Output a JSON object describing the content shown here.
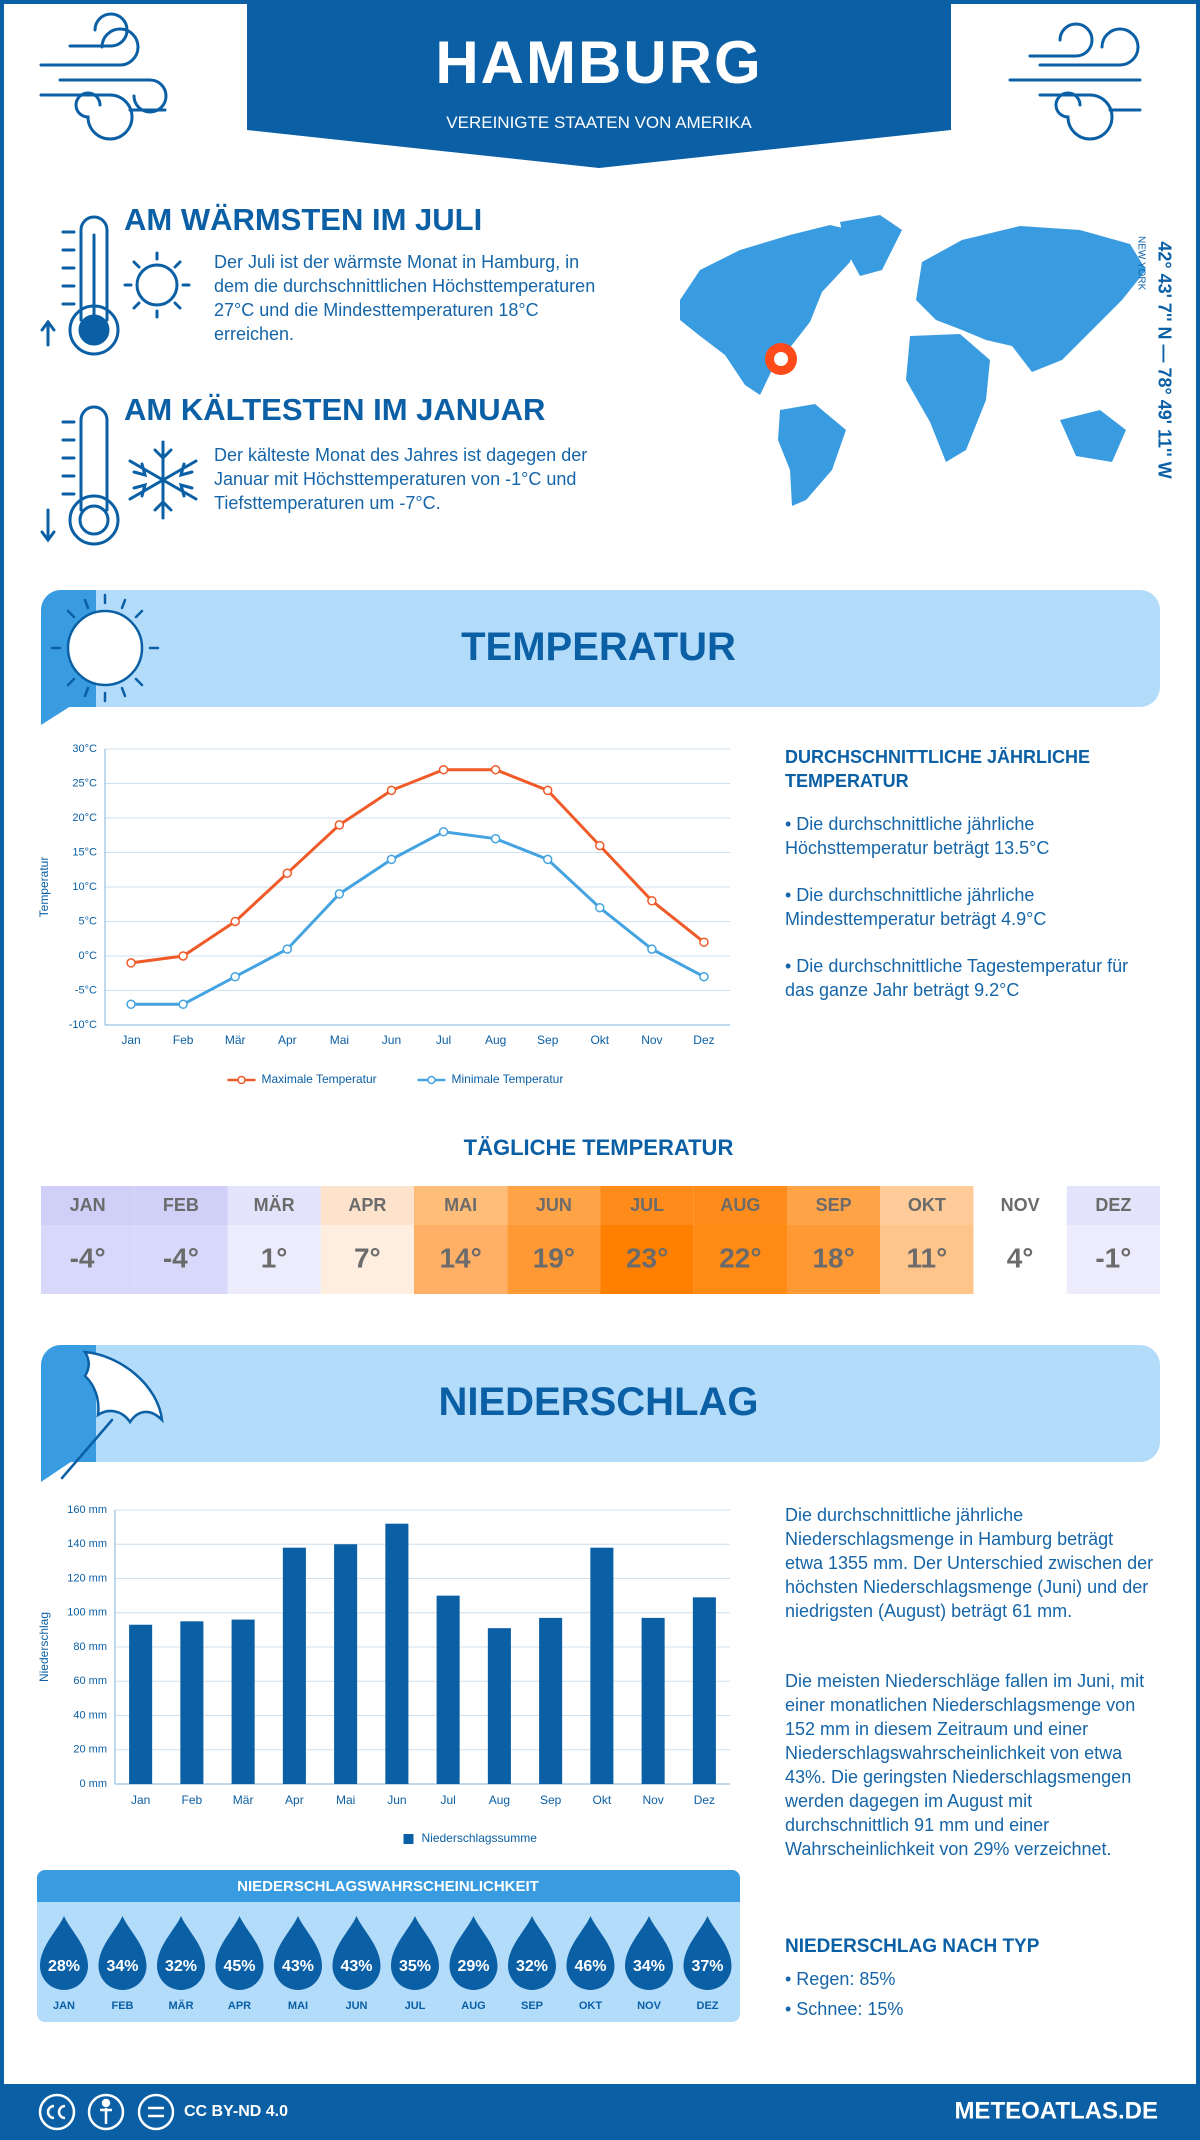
{
  "header": {
    "title": "HAMBURG",
    "subtitle": "VEREINIGTE STAATEN VON AMERIKA"
  },
  "location": {
    "coordinates": "42° 43' 7'' N — 78° 49' 11'' W",
    "region": "NEW YORK"
  },
  "highlights": [
    {
      "title": "AM WÄRMSTEN IM JULI",
      "text": "Der Juli ist der wärmste Monat in Hamburg, in dem die durchschnittlichen Höchsttemperaturen 27°C und die Mindesttemperaturen 18°C erreichen."
    },
    {
      "title": "AM KÄLTESTEN IM JANUAR",
      "text": "Der kälteste Monat des Jahres ist dagegen der Januar mit Höchsttemperaturen von -1°C und Tiefsttemperaturen um -7°C."
    }
  ],
  "temperature": {
    "title": "TEMPERATUR",
    "summary": {
      "title": "DURCHSCHNITTLICHE JÄHRLICHE TEMPERATUR",
      "items": [
        "• Die durchschnittliche jährliche Höchsttemperatur beträgt 13.5°C",
        "• Die durchschnittliche jährliche Mindesttemperatur beträgt 4.9°C",
        "• Die durchschnittliche Tagestemperatur für das ganze Jahr beträgt 9.2°C"
      ]
    }
  },
  "chart_data": [
    {
      "type": "line",
      "y_label": "Temperatur",
      "categories": [
        "Jan",
        "Feb",
        "Mär",
        "Apr",
        "Mai",
        "Jun",
        "Jul",
        "Aug",
        "Sep",
        "Okt",
        "Nov",
        "Dez"
      ],
      "series": [
        {
          "name": "Maximale Temperatur",
          "color": "#f05a28",
          "values": [
            -1,
            0,
            5,
            12,
            19,
            24,
            27,
            27,
            24,
            16,
            8,
            2
          ]
        },
        {
          "name": "Minimale Temperatur",
          "color": "#44a3e0",
          "values": [
            -7,
            -7,
            -3,
            1,
            9,
            14,
            18,
            17,
            14,
            7,
            1,
            -3
          ]
        }
      ],
      "ylim": [
        -10,
        30
      ],
      "yticks": [
        {
          "value": -10,
          "label": "-10°C"
        },
        {
          "value": -5,
          "label": "-5°C"
        },
        {
          "value": 0,
          "label": "0°C"
        },
        {
          "value": 5,
          "label": "5°C"
        },
        {
          "value": 10,
          "label": "10°C"
        },
        {
          "value": 15,
          "label": "15°C"
        },
        {
          "value": 20,
          "label": "20°C"
        },
        {
          "value": 25,
          "label": "25°C"
        },
        {
          "value": 30,
          "label": "30°C"
        }
      ],
      "grid": true,
      "legend": "bottom"
    },
    {
      "type": "bar",
      "y_label": "Niederschlag",
      "categories": [
        "Jan",
        "Feb",
        "Mär",
        "Apr",
        "Mai",
        "Jun",
        "Jul",
        "Aug",
        "Sep",
        "Okt",
        "Nov",
        "Dez"
      ],
      "series": [
        {
          "name": "Niederschlagssumme",
          "color": "#0b5fa5",
          "values": [
            93,
            95,
            96,
            138,
            140,
            152,
            110,
            91,
            97,
            138,
            97,
            109
          ]
        }
      ],
      "ylim": [
        0,
        160
      ],
      "yticks": [
        {
          "value": 0,
          "label": "0 mm"
        },
        {
          "value": 20,
          "label": "20 mm"
        },
        {
          "value": 40,
          "label": "40 mm"
        },
        {
          "value": 60,
          "label": "60 mm"
        },
        {
          "value": 80,
          "label": "80 mm"
        },
        {
          "value": 100,
          "label": "100 mm"
        },
        {
          "value": 120,
          "label": "120 mm"
        },
        {
          "value": 140,
          "label": "140 mm"
        },
        {
          "value": 160,
          "label": "160 mm"
        }
      ],
      "grid": true,
      "legend": "bottom"
    }
  ],
  "daily_temperature": {
    "title": "TÄGLICHE TEMPERATUR",
    "months": [
      "JAN",
      "FEB",
      "MÄR",
      "APR",
      "MAI",
      "JUN",
      "JUL",
      "AUG",
      "SEP",
      "OKT",
      "NOV",
      "DEZ"
    ],
    "values": [
      "-4°",
      "-4°",
      "1°",
      "7°",
      "14°",
      "19°",
      "23°",
      "22°",
      "18°",
      "11°",
      "4°",
      "-1°"
    ]
  },
  "precipitation": {
    "title": "NIEDERSCHLAG",
    "paragraphs": [
      "Die durchschnittliche jährliche Niederschlagsmenge in Hamburg beträgt etwa 1355 mm. Der Unterschied zwischen der höchsten Niederschlagsmenge (Juni) und der niedrigsten (August) beträgt 61 mm.",
      "Die meisten Niederschläge fallen im Juni, mit einer monatlichen Niederschlagsmenge von 152 mm in diesem Zeitraum und einer Niederschlagswahrscheinlichkeit von etwa 43%. Die geringsten Niederschlagsmengen werden dagegen im August mit durchschnittlich 91 mm und einer Wahrscheinlichkeit von 29% verzeichnet."
    ],
    "by_type": {
      "title": "NIEDERSCHLAG NACH TYP",
      "items": [
        "• Regen: 85%",
        "• Schnee: 15%"
      ]
    }
  },
  "probability": {
    "title": "NIEDERSCHLAGSWAHRSCHEINLICHKEIT",
    "months": [
      "JAN",
      "FEB",
      "MÄR",
      "APR",
      "MAI",
      "JUN",
      "JUL",
      "AUG",
      "SEP",
      "OKT",
      "NOV",
      "DEZ"
    ],
    "values": [
      "28%",
      "34%",
      "32%",
      "45%",
      "43%",
      "43%",
      "35%",
      "29%",
      "32%",
      "46%",
      "34%",
      "37%"
    ]
  },
  "footer": {
    "license": "CC BY-ND 4.0",
    "site": "METEOATLAS.DE"
  }
}
